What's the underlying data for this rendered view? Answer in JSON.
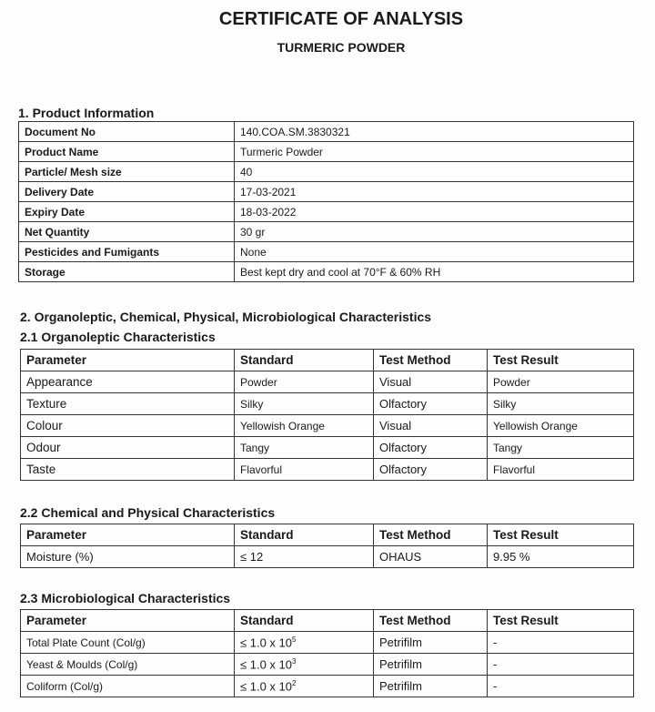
{
  "header": {
    "title": "CERTIFICATE OF ANALYSIS",
    "subtitle": "TURMERIC POWDER"
  },
  "section1": {
    "heading": "1.  Product Information",
    "rows": [
      [
        "Document No",
        "140.COA.SM.3830321"
      ],
      [
        "Product Name",
        "Turmeric Powder"
      ],
      [
        "Particle/ Mesh size",
        "40"
      ],
      [
        "Delivery Date",
        "17-03-2021"
      ],
      [
        "Expiry Date",
        "18-03-2022"
      ],
      [
        "Net Quantity",
        "30 gr"
      ],
      [
        "Pesticides and Fumigants",
        "None"
      ],
      [
        "Storage",
        "Best kept dry and cool at 70°F & 60% RH"
      ]
    ]
  },
  "section2": {
    "heading": "2.  Organoleptic, Chemical, Physical, Microbiological Characteristics"
  },
  "organoleptic": {
    "heading": "2.1 Organoleptic Characteristics",
    "columns": [
      "Parameter",
      "Standard",
      "Test Method",
      "Test Result"
    ],
    "rows": [
      [
        "Appearance",
        "Powder",
        "Visual",
        "Powder"
      ],
      [
        "Texture",
        "Silky",
        "Olfactory",
        "Silky"
      ],
      [
        "Colour",
        "Yellowish Orange",
        "Visual",
        "Yellowish Orange"
      ],
      [
        "Odour",
        "Tangy",
        "Olfactory",
        "Tangy"
      ],
      [
        "Taste",
        "Flavorful",
        "Olfactory",
        "Flavorful"
      ]
    ]
  },
  "chemical": {
    "heading": "2.2 Chemical and Physical Characteristics",
    "columns": [
      "Parameter",
      "Standard",
      "Test Method",
      "Test Result"
    ],
    "rows": [
      [
        "Moisture (%)",
        "≤ 12",
        "OHAUS",
        "9.95  %"
      ]
    ]
  },
  "micro": {
    "heading": "2.3 Microbiological Characteristics",
    "columns": [
      "Parameter",
      "Standard",
      "Test Method",
      "Test Result"
    ],
    "rows": [
      {
        "parameter": "Total Plate Count (Col/g)",
        "standard": "≤ 1.0 x 10",
        "exponent": "5",
        "method": "Petrifilm",
        "result": "-"
      },
      {
        "parameter": "Yeast & Moulds (Col/g)",
        "standard": "≤ 1.0 x 10",
        "exponent": "3",
        "method": "Petrifilm",
        "result": "-"
      },
      {
        "parameter": "Coliform (Col/g)",
        "standard": "≤ 1.0 x 10",
        "exponent": "2",
        "method": "Petrifilm",
        "result": "-"
      }
    ]
  }
}
